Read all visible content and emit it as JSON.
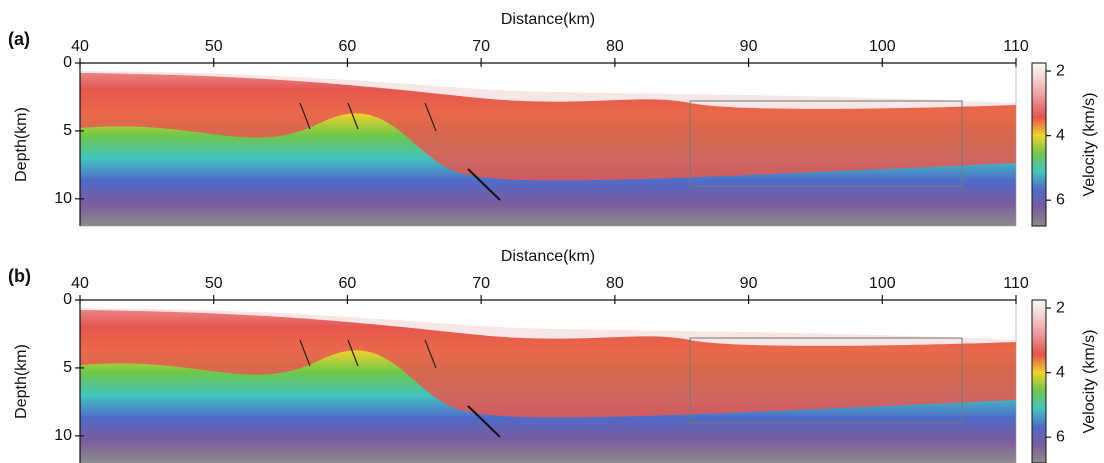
{
  "chart_data": [
    {
      "type": "image",
      "panel_label": "(a)",
      "xlabel": "Distance(km)",
      "ylabel": "Depth(km)",
      "xlim": [
        40,
        110
      ],
      "xticks": [
        40,
        50,
        60,
        70,
        80,
        90,
        100,
        110
      ],
      "ylim": [
        0,
        12
      ],
      "yticks": [
        0,
        5,
        10
      ],
      "y_inverted": true,
      "colorbar": {
        "label": "Velocity (km/s)",
        "lim": [
          1.75,
          6.8
        ],
        "ticks": [
          2,
          4,
          6
        ],
        "colors": [
          "#fbf7f7",
          "#f2cccc",
          "#ea9191",
          "#e5534d",
          "#f2d22a",
          "#6dc74a",
          "#41c4bf",
          "#4f6bc8",
          "#7b5b9e",
          "#8c8c8c"
        ]
      }
    },
    {
      "type": "image",
      "panel_label": "(b)",
      "xlabel": "Distance(km)",
      "ylabel": "Depth(km)",
      "xlim": [
        40,
        110
      ],
      "xticks": [
        40,
        50,
        60,
        70,
        80,
        90,
        100,
        110
      ],
      "ylim": [
        0,
        12
      ],
      "yticks": [
        0,
        5,
        10
      ],
      "y_inverted": true,
      "colorbar": {
        "label": "Velocity (km/s)",
        "lim": [
          1.75,
          6.8
        ],
        "ticks": [
          2,
          4,
          6
        ],
        "colors": [
          "#fbf7f7",
          "#f2cccc",
          "#ea9191",
          "#e5534d",
          "#f2d22a",
          "#6dc74a",
          "#41c4bf",
          "#4f6bc8",
          "#7b5b9e",
          "#8c8c8c"
        ]
      }
    }
  ]
}
